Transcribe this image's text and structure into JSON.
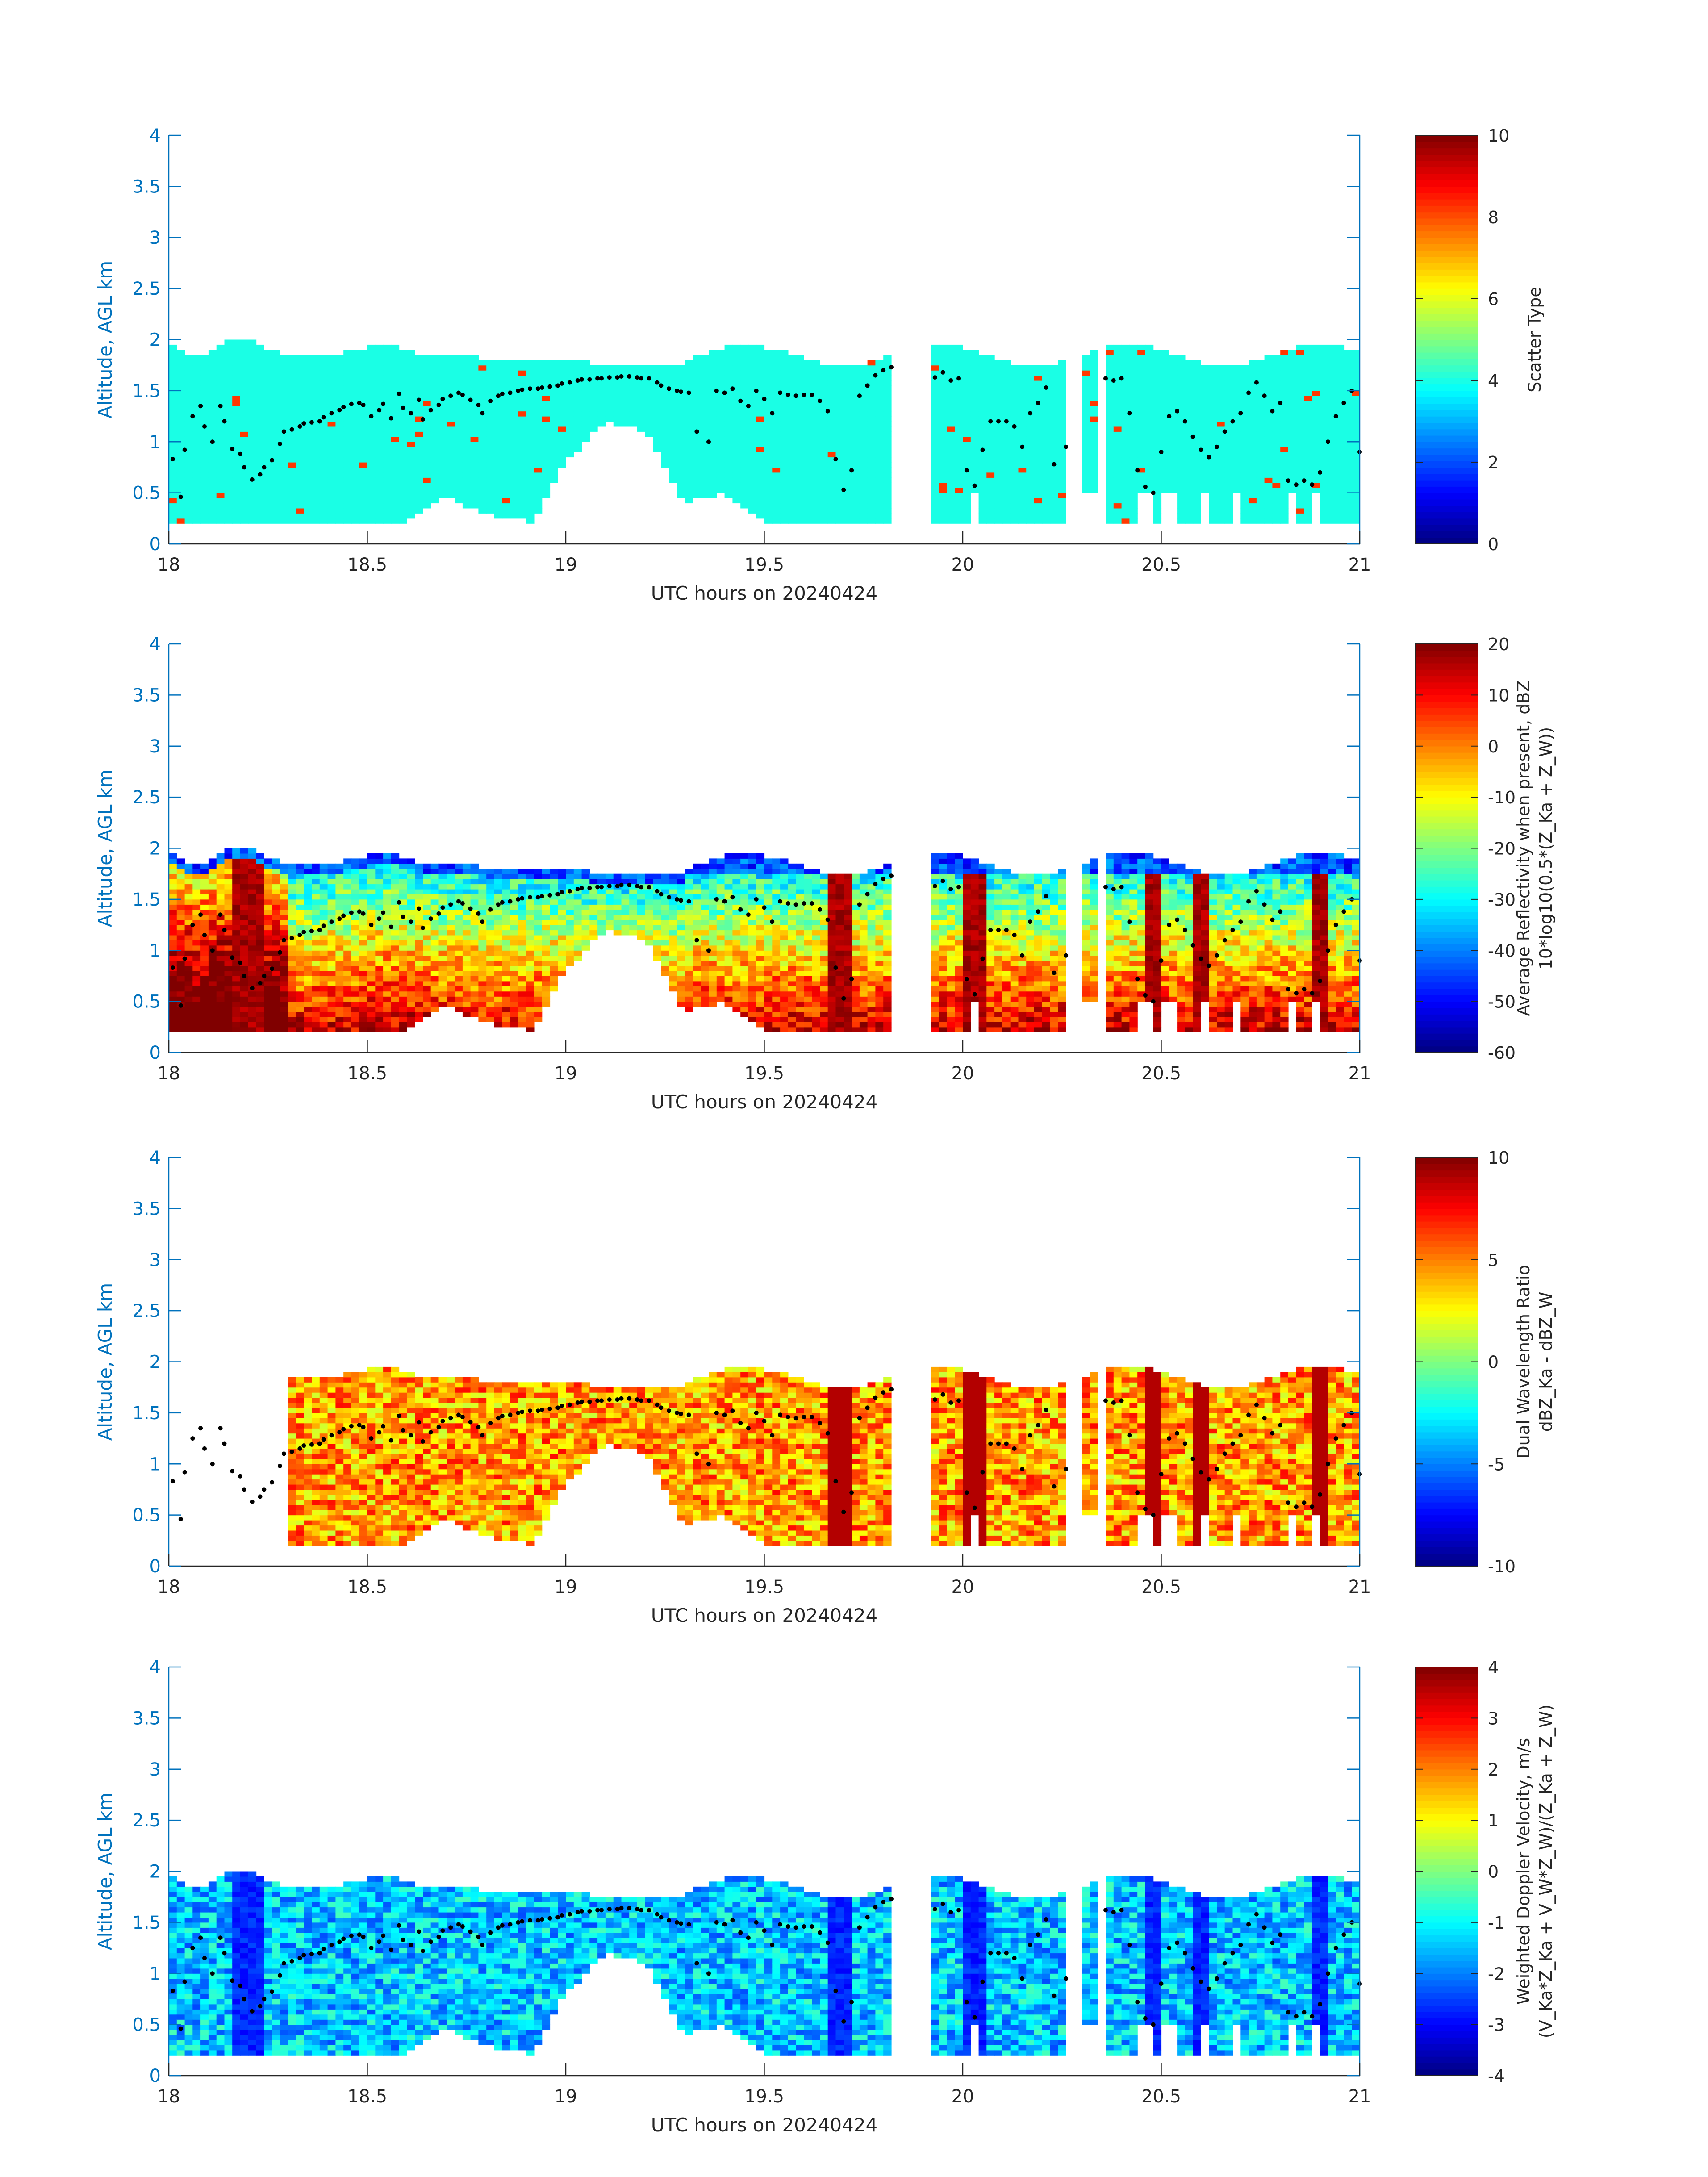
{
  "figure": {
    "background": "#ffffff",
    "axis_color": "#0072BD",
    "text_color": "#262626",
    "dot_color": "#000000"
  },
  "chart_data": [
    {
      "type": "heatmap",
      "title": "",
      "xlabel": "UTC hours on 20240424",
      "ylabel": "Altitude, AGL km",
      "xlim": [
        18,
        21
      ],
      "ylim": [
        0,
        4
      ],
      "xticks": [
        "18",
        "18.5",
        "19",
        "19.5",
        "20",
        "20.5",
        "21"
      ],
      "yticks": [
        "0",
        "0.5",
        "1",
        "1.5",
        "2",
        "2.5",
        "3",
        "3.5",
        "4"
      ],
      "colorbar": {
        "label_lines": [
          "Scatter Type"
        ],
        "range": [
          0,
          10
        ],
        "ticks": [
          "0",
          "2",
          "4",
          "6",
          "8",
          "10"
        ],
        "colormap": "jet"
      },
      "field": "scatter",
      "dots": true
    },
    {
      "type": "heatmap",
      "title": "",
      "xlabel": "UTC hours on 20240424",
      "ylabel": "Altitude, AGL km",
      "xlim": [
        18,
        21
      ],
      "ylim": [
        0,
        4
      ],
      "xticks": [
        "18",
        "18.5",
        "19",
        "19.5",
        "20",
        "20.5",
        "21"
      ],
      "yticks": [
        "0",
        "0.5",
        "1",
        "1.5",
        "2",
        "2.5",
        "3",
        "3.5",
        "4"
      ],
      "colorbar": {
        "label_lines": [
          "Average Reflectivity when present, dBZ",
          "10*log10(0.5*(Z_Ka + Z_W))"
        ],
        "range": [
          -60,
          20
        ],
        "ticks": [
          "-60",
          "-50",
          "-40",
          "-30",
          "-20",
          "-10",
          "0",
          "10",
          "20"
        ],
        "colormap": "jet"
      },
      "field": "reflectivity",
      "dots": true
    },
    {
      "type": "heatmap",
      "title": "",
      "xlabel": "UTC hours on 20240424",
      "ylabel": "Altitude, AGL km",
      "xlim": [
        18,
        21
      ],
      "ylim": [
        0,
        4
      ],
      "xticks": [
        "18",
        "18.5",
        "19",
        "19.5",
        "20",
        "20.5",
        "21"
      ],
      "yticks": [
        "0",
        "0.5",
        "1",
        "1.5",
        "2",
        "2.5",
        "3",
        "3.5",
        "4"
      ],
      "colorbar": {
        "label_lines": [
          "Dual Wavelength Ratio",
          "dBZ_Ka - dBZ_W"
        ],
        "range": [
          -10,
          10
        ],
        "ticks": [
          "-10",
          "-5",
          "0",
          "5",
          "10"
        ],
        "colormap": "jet"
      },
      "field": "dwr",
      "dots": true
    },
    {
      "type": "heatmap",
      "title": "",
      "xlabel": "UTC hours on 20240424",
      "ylabel": "Altitude, AGL km",
      "xlim": [
        18,
        21
      ],
      "ylim": [
        0,
        4
      ],
      "xticks": [
        "18",
        "18.5",
        "19",
        "19.5",
        "20",
        "20.5",
        "21"
      ],
      "yticks": [
        "0",
        "0.5",
        "1",
        "1.5",
        "2",
        "2.5",
        "3",
        "3.5",
        "4"
      ],
      "colorbar": {
        "label_lines": [
          "Weighted Doppler Velocity, m/s",
          "(V_Ka*Z_Ka + V_W*Z_W)/(Z_Ka + Z_W)"
        ],
        "range": [
          -4,
          4
        ],
        "ticks": [
          "-4",
          "-3",
          "-2",
          "-1",
          "0",
          "1",
          "2",
          "3",
          "4"
        ],
        "colormap": "jet"
      },
      "field": "velocity",
      "dots": true
    }
  ],
  "cloud_top_km": [
    {
      "x": 18.0,
      "y": 1.98
    },
    {
      "x": 18.05,
      "y": 1.85
    },
    {
      "x": 18.1,
      "y": 1.86
    },
    {
      "x": 18.15,
      "y": 1.98
    },
    {
      "x": 18.2,
      "y": 2.02
    },
    {
      "x": 18.25,
      "y": 1.9
    },
    {
      "x": 18.3,
      "y": 1.84
    },
    {
      "x": 18.4,
      "y": 1.85
    },
    {
      "x": 18.5,
      "y": 1.92
    },
    {
      "x": 18.55,
      "y": 1.96
    },
    {
      "x": 18.6,
      "y": 1.88
    },
    {
      "x": 18.7,
      "y": 1.85
    },
    {
      "x": 18.8,
      "y": 1.82
    },
    {
      "x": 18.9,
      "y": 1.8
    },
    {
      "x": 19.0,
      "y": 1.8
    },
    {
      "x": 19.1,
      "y": 1.76
    },
    {
      "x": 19.2,
      "y": 1.74
    },
    {
      "x": 19.3,
      "y": 1.74
    }
  ],
  "cloud_base_km": [
    {
      "x": 18.0,
      "y": 0.2
    },
    {
      "x": 18.6,
      "y": 0.2
    },
    {
      "x": 18.7,
      "y": 0.45
    },
    {
      "x": 18.8,
      "y": 0.3
    },
    {
      "x": 18.92,
      "y": 0.2
    },
    {
      "x": 19.0,
      "y": 0.8
    },
    {
      "x": 19.1,
      "y": 1.2
    },
    {
      "x": 19.2,
      "y": 1.1
    },
    {
      "x": 19.3,
      "y": 0.4
    },
    {
      "x": 19.4,
      "y": 0.5
    },
    {
      "x": 19.5,
      "y": 0.2
    },
    {
      "x": 19.8,
      "y": 0.2
    }
  ],
  "dots_km": [
    {
      "x": 18.01,
      "y": 0.83
    },
    {
      "x": 18.03,
      "y": 0.46
    },
    {
      "x": 18.04,
      "y": 0.92
    },
    {
      "x": 18.06,
      "y": 1.25
    },
    {
      "x": 18.08,
      "y": 1.35
    },
    {
      "x": 18.09,
      "y": 1.15
    },
    {
      "x": 18.11,
      "y": 1.0
    },
    {
      "x": 18.13,
      "y": 1.35
    },
    {
      "x": 18.14,
      "y": 1.2
    },
    {
      "x": 18.16,
      "y": 0.93
    },
    {
      "x": 18.18,
      "y": 0.88
    },
    {
      "x": 18.19,
      "y": 0.75
    },
    {
      "x": 18.21,
      "y": 0.63
    },
    {
      "x": 18.23,
      "y": 0.68
    },
    {
      "x": 18.24,
      "y": 0.75
    },
    {
      "x": 18.26,
      "y": 0.82
    },
    {
      "x": 18.28,
      "y": 0.98
    },
    {
      "x": 18.29,
      "y": 1.1
    },
    {
      "x": 18.31,
      "y": 1.12
    },
    {
      "x": 18.33,
      "y": 1.15
    },
    {
      "x": 18.34,
      "y": 1.18
    },
    {
      "x": 18.36,
      "y": 1.19
    },
    {
      "x": 18.38,
      "y": 1.2
    },
    {
      "x": 18.39,
      "y": 1.24
    },
    {
      "x": 18.41,
      "y": 1.28
    },
    {
      "x": 18.43,
      "y": 1.31
    },
    {
      "x": 18.44,
      "y": 1.34
    },
    {
      "x": 18.46,
      "y": 1.37
    },
    {
      "x": 18.48,
      "y": 1.38
    },
    {
      "x": 18.49,
      "y": 1.36
    },
    {
      "x": 18.51,
      "y": 1.25
    },
    {
      "x": 18.53,
      "y": 1.31
    },
    {
      "x": 18.54,
      "y": 1.37
    },
    {
      "x": 18.56,
      "y": 1.23
    },
    {
      "x": 18.58,
      "y": 1.47
    },
    {
      "x": 18.59,
      "y": 1.33
    },
    {
      "x": 18.61,
      "y": 1.28
    },
    {
      "x": 18.63,
      "y": 1.41
    },
    {
      "x": 18.64,
      "y": 1.22
    },
    {
      "x": 18.66,
      "y": 1.31
    },
    {
      "x": 18.68,
      "y": 1.36
    },
    {
      "x": 18.69,
      "y": 1.42
    },
    {
      "x": 18.71,
      "y": 1.45
    },
    {
      "x": 18.73,
      "y": 1.48
    },
    {
      "x": 18.74,
      "y": 1.46
    },
    {
      "x": 18.76,
      "y": 1.41
    },
    {
      "x": 18.78,
      "y": 1.36
    },
    {
      "x": 18.79,
      "y": 1.28
    },
    {
      "x": 18.81,
      "y": 1.4
    },
    {
      "x": 18.83,
      "y": 1.45
    },
    {
      "x": 18.84,
      "y": 1.47
    },
    {
      "x": 18.86,
      "y": 1.48
    },
    {
      "x": 18.88,
      "y": 1.5
    },
    {
      "x": 18.89,
      "y": 1.51
    },
    {
      "x": 18.91,
      "y": 1.52
    },
    {
      "x": 18.93,
      "y": 1.52
    },
    {
      "x": 18.94,
      "y": 1.53
    },
    {
      "x": 18.96,
      "y": 1.54
    },
    {
      "x": 18.98,
      "y": 1.55
    },
    {
      "x": 18.99,
      "y": 1.57
    },
    {
      "x": 19.01,
      "y": 1.58
    },
    {
      "x": 19.03,
      "y": 1.6
    },
    {
      "x": 19.04,
      "y": 1.61
    },
    {
      "x": 19.06,
      "y": 1.61
    },
    {
      "x": 19.08,
      "y": 1.62
    },
    {
      "x": 19.09,
      "y": 1.62
    },
    {
      "x": 19.11,
      "y": 1.63
    },
    {
      "x": 19.13,
      "y": 1.63
    },
    {
      "x": 19.14,
      "y": 1.64
    },
    {
      "x": 19.16,
      "y": 1.64
    },
    {
      "x": 19.18,
      "y": 1.63
    },
    {
      "x": 19.19,
      "y": 1.62
    },
    {
      "x": 19.21,
      "y": 1.62
    },
    {
      "x": 19.23,
      "y": 1.58
    },
    {
      "x": 19.24,
      "y": 1.55
    },
    {
      "x": 19.26,
      "y": 1.52
    },
    {
      "x": 19.28,
      "y": 1.5
    },
    {
      "x": 19.29,
      "y": 1.49
    },
    {
      "x": 19.31,
      "y": 1.48
    },
    {
      "x": 19.33,
      "y": 1.1
    },
    {
      "x": 19.36,
      "y": 1.0
    },
    {
      "x": 19.38,
      "y": 1.5
    },
    {
      "x": 19.4,
      "y": 1.48
    },
    {
      "x": 19.42,
      "y": 1.52
    },
    {
      "x": 19.44,
      "y": 1.4
    },
    {
      "x": 19.46,
      "y": 1.35
    },
    {
      "x": 19.48,
      "y": 1.5
    },
    {
      "x": 19.5,
      "y": 1.42
    },
    {
      "x": 19.52,
      "y": 1.28
    },
    {
      "x": 19.54,
      "y": 1.48
    },
    {
      "x": 19.56,
      "y": 1.46
    },
    {
      "x": 19.58,
      "y": 1.45
    },
    {
      "x": 19.6,
      "y": 1.46
    },
    {
      "x": 19.62,
      "y": 1.46
    },
    {
      "x": 19.64,
      "y": 1.4
    },
    {
      "x": 19.66,
      "y": 1.3
    },
    {
      "x": 19.68,
      "y": 0.83
    },
    {
      "x": 19.7,
      "y": 0.53
    },
    {
      "x": 19.72,
      "y": 0.72
    },
    {
      "x": 19.74,
      "y": 1.45
    },
    {
      "x": 19.76,
      "y": 1.55
    },
    {
      "x": 19.78,
      "y": 1.65
    },
    {
      "x": 19.8,
      "y": 1.7
    },
    {
      "x": 19.82,
      "y": 1.73
    },
    {
      "x": 19.93,
      "y": 1.63
    },
    {
      "x": 19.95,
      "y": 1.68
    },
    {
      "x": 19.97,
      "y": 1.6
    },
    {
      "x": 19.99,
      "y": 1.62
    },
    {
      "x": 20.01,
      "y": 0.72
    },
    {
      "x": 20.03,
      "y": 0.57
    },
    {
      "x": 20.05,
      "y": 0.92
    },
    {
      "x": 20.07,
      "y": 1.2
    },
    {
      "x": 20.09,
      "y": 1.2
    },
    {
      "x": 20.11,
      "y": 1.2
    },
    {
      "x": 20.13,
      "y": 1.15
    },
    {
      "x": 20.15,
      "y": 0.95
    },
    {
      "x": 20.17,
      "y": 1.28
    },
    {
      "x": 20.19,
      "y": 1.38
    },
    {
      "x": 20.21,
      "y": 1.53
    },
    {
      "x": 20.23,
      "y": 0.78
    },
    {
      "x": 20.26,
      "y": 0.95
    },
    {
      "x": 20.36,
      "y": 1.62
    },
    {
      "x": 20.38,
      "y": 1.6
    },
    {
      "x": 20.4,
      "y": 1.62
    },
    {
      "x": 20.42,
      "y": 1.28
    },
    {
      "x": 20.44,
      "y": 0.72
    },
    {
      "x": 20.46,
      "y": 0.56
    },
    {
      "x": 20.48,
      "y": 0.5
    },
    {
      "x": 20.5,
      "y": 0.9
    },
    {
      "x": 20.52,
      "y": 1.25
    },
    {
      "x": 20.54,
      "y": 1.3
    },
    {
      "x": 20.56,
      "y": 1.2
    },
    {
      "x": 20.58,
      "y": 1.05
    },
    {
      "x": 20.6,
      "y": 0.92
    },
    {
      "x": 20.62,
      "y": 0.85
    },
    {
      "x": 20.64,
      "y": 0.95
    },
    {
      "x": 20.66,
      "y": 1.1
    },
    {
      "x": 20.68,
      "y": 1.2
    },
    {
      "x": 20.7,
      "y": 1.28
    },
    {
      "x": 20.72,
      "y": 1.48
    },
    {
      "x": 20.74,
      "y": 1.58
    },
    {
      "x": 20.76,
      "y": 1.45
    },
    {
      "x": 20.78,
      "y": 1.3
    },
    {
      "x": 20.8,
      "y": 1.38
    },
    {
      "x": 20.82,
      "y": 0.62
    },
    {
      "x": 20.84,
      "y": 0.58
    },
    {
      "x": 20.86,
      "y": 0.62
    },
    {
      "x": 20.88,
      "y": 0.58
    },
    {
      "x": 20.9,
      "y": 0.7
    },
    {
      "x": 20.92,
      "y": 1.0
    },
    {
      "x": 20.94,
      "y": 1.25
    },
    {
      "x": 20.96,
      "y": 1.38
    },
    {
      "x": 20.98,
      "y": 1.5
    },
    {
      "x": 21.0,
      "y": 0.9
    }
  ]
}
